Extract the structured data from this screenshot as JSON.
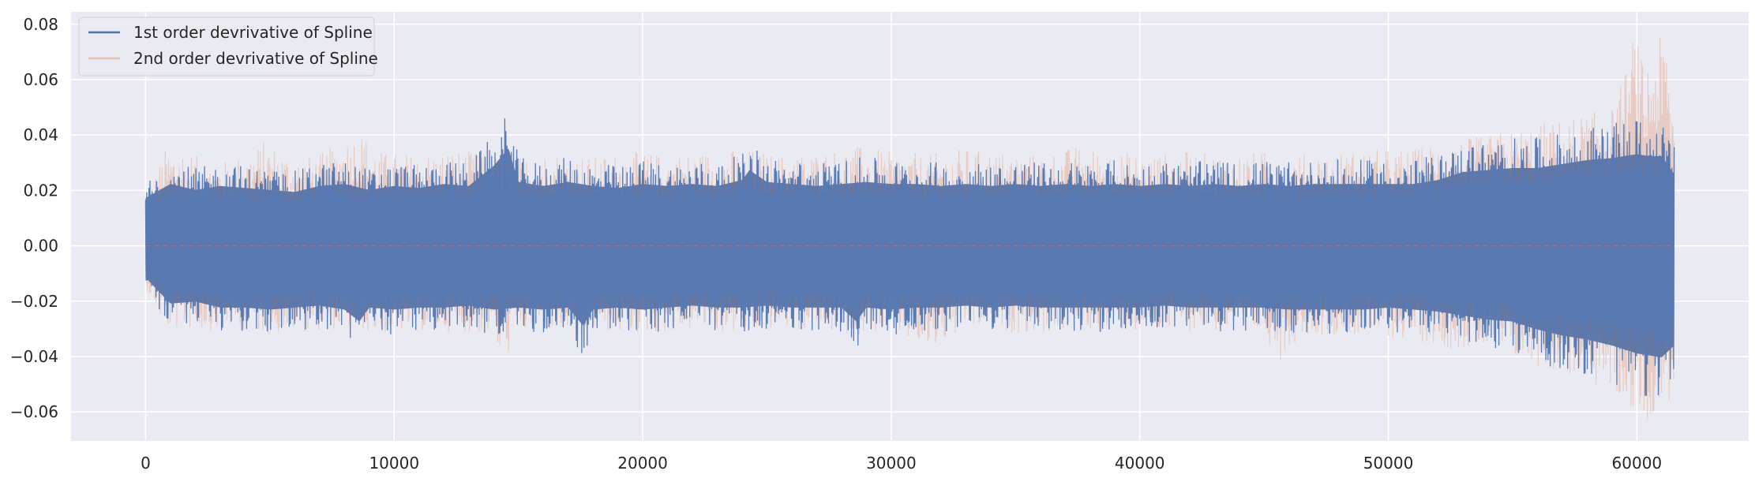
{
  "chart_data": {
    "type": "line",
    "title": "",
    "xlabel": "",
    "ylabel": "",
    "xlim": [
      -3000,
      64500
    ],
    "ylim": [
      -0.0705,
      0.0845
    ],
    "x_ticks": [
      0,
      10000,
      20000,
      30000,
      40000,
      50000,
      60000
    ],
    "x_tick_labels": [
      "0",
      "10000",
      "20000",
      "30000",
      "40000",
      "50000",
      "60000"
    ],
    "y_ticks": [
      -0.06,
      -0.04,
      -0.02,
      0.0,
      0.02,
      0.04,
      0.06,
      0.08
    ],
    "y_tick_labels": [
      "−0.06",
      "−0.04",
      "−0.02",
      "0.00",
      "0.02",
      "0.04",
      "0.06",
      "0.08"
    ],
    "grid": true,
    "legend_position": "top-left",
    "x_range": [
      0,
      61500
    ],
    "zero_line": {
      "y": 0.0,
      "color": "#e05a5a",
      "style": "dashed"
    },
    "series": [
      {
        "name": "1st order devrivative of Spline",
        "color": "#4c72b0",
        "upper_envelope": [
          [
            0,
            0.024
          ],
          [
            1000,
            0.031
          ],
          [
            2000,
            0.028
          ],
          [
            3000,
            0.03
          ],
          [
            4000,
            0.029
          ],
          [
            5000,
            0.028
          ],
          [
            6000,
            0.027
          ],
          [
            7000,
            0.03
          ],
          [
            8000,
            0.031
          ],
          [
            9000,
            0.028
          ],
          [
            10000,
            0.03
          ],
          [
            11000,
            0.029
          ],
          [
            12000,
            0.031
          ],
          [
            13000,
            0.03
          ],
          [
            14000,
            0.04
          ],
          [
            14600,
            0.049
          ],
          [
            15000,
            0.032
          ],
          [
            16000,
            0.03
          ],
          [
            17000,
            0.032
          ],
          [
            18000,
            0.03
          ],
          [
            19000,
            0.029
          ],
          [
            20000,
            0.031
          ],
          [
            21000,
            0.03
          ],
          [
            22000,
            0.031
          ],
          [
            23000,
            0.03
          ],
          [
            24000,
            0.033
          ],
          [
            24300,
            0.038
          ],
          [
            25000,
            0.032
          ],
          [
            26000,
            0.031
          ],
          [
            27000,
            0.03
          ],
          [
            28000,
            0.031
          ],
          [
            29000,
            0.032
          ],
          [
            30000,
            0.031
          ],
          [
            31000,
            0.031
          ],
          [
            32000,
            0.03
          ],
          [
            33000,
            0.031
          ],
          [
            34000,
            0.03
          ],
          [
            35000,
            0.031
          ],
          [
            36000,
            0.03
          ],
          [
            37000,
            0.031
          ],
          [
            38000,
            0.03
          ],
          [
            39000,
            0.031
          ],
          [
            40000,
            0.03
          ],
          [
            41000,
            0.031
          ],
          [
            42000,
            0.03
          ],
          [
            43000,
            0.031
          ],
          [
            44000,
            0.03
          ],
          [
            45000,
            0.031
          ],
          [
            46000,
            0.03
          ],
          [
            47000,
            0.031
          ],
          [
            48000,
            0.031
          ],
          [
            49000,
            0.031
          ],
          [
            50000,
            0.031
          ],
          [
            51000,
            0.031
          ],
          [
            52000,
            0.033
          ],
          [
            53000,
            0.037
          ],
          [
            54000,
            0.038
          ],
          [
            55000,
            0.039
          ],
          [
            56000,
            0.039
          ],
          [
            57000,
            0.041
          ],
          [
            58000,
            0.043
          ],
          [
            59000,
            0.044
          ],
          [
            60000,
            0.046
          ],
          [
            60500,
            0.045
          ],
          [
            61000,
            0.045
          ],
          [
            61500,
            0.036
          ]
        ],
        "lower_envelope": [
          [
            0,
            -0.016
          ],
          [
            1000,
            -0.029
          ],
          [
            2000,
            -0.028
          ],
          [
            3000,
            -0.031
          ],
          [
            4000,
            -0.031
          ],
          [
            5000,
            -0.032
          ],
          [
            6000,
            -0.031
          ],
          [
            7000,
            -0.03
          ],
          [
            8000,
            -0.032
          ],
          [
            8600,
            -0.038
          ],
          [
            9000,
            -0.031
          ],
          [
            10000,
            -0.032
          ],
          [
            11000,
            -0.031
          ],
          [
            12000,
            -0.031
          ],
          [
            13000,
            -0.03
          ],
          [
            14000,
            -0.032
          ],
          [
            15000,
            -0.031
          ],
          [
            16000,
            -0.032
          ],
          [
            17000,
            -0.031
          ],
          [
            17600,
            -0.04
          ],
          [
            18000,
            -0.032
          ],
          [
            19000,
            -0.031
          ],
          [
            20000,
            -0.032
          ],
          [
            21000,
            -0.031
          ],
          [
            22000,
            -0.03
          ],
          [
            23000,
            -0.031
          ],
          [
            24000,
            -0.031
          ],
          [
            25000,
            -0.03
          ],
          [
            26000,
            -0.031
          ],
          [
            27000,
            -0.031
          ],
          [
            28000,
            -0.031
          ],
          [
            28600,
            -0.038
          ],
          [
            29000,
            -0.031
          ],
          [
            30000,
            -0.032
          ],
          [
            31000,
            -0.031
          ],
          [
            32000,
            -0.031
          ],
          [
            33000,
            -0.03
          ],
          [
            34000,
            -0.031
          ],
          [
            35000,
            -0.03
          ],
          [
            36000,
            -0.031
          ],
          [
            37000,
            -0.031
          ],
          [
            38000,
            -0.031
          ],
          [
            39000,
            -0.031
          ],
          [
            40000,
            -0.031
          ],
          [
            41000,
            -0.03
          ],
          [
            42000,
            -0.031
          ],
          [
            43000,
            -0.031
          ],
          [
            44000,
            -0.031
          ],
          [
            45000,
            -0.031
          ],
          [
            46000,
            -0.032
          ],
          [
            47000,
            -0.032
          ],
          [
            48000,
            -0.032
          ],
          [
            49000,
            -0.032
          ],
          [
            50000,
            -0.031
          ],
          [
            51000,
            -0.032
          ],
          [
            52000,
            -0.033
          ],
          [
            53000,
            -0.035
          ],
          [
            54000,
            -0.037
          ],
          [
            55000,
            -0.038
          ],
          [
            56000,
            -0.042
          ],
          [
            57000,
            -0.045
          ],
          [
            58000,
            -0.047
          ],
          [
            59000,
            -0.05
          ],
          [
            60000,
            -0.054
          ],
          [
            60500,
            -0.055
          ],
          [
            61000,
            -0.056
          ],
          [
            61500,
            -0.05
          ]
        ]
      },
      {
        "name": "2nd order devrivative of Spline",
        "color": "#e5c0b2",
        "upper_envelope": [
          [
            0,
            0.018
          ],
          [
            800,
            0.035
          ],
          [
            1500,
            0.036
          ],
          [
            2500,
            0.03
          ],
          [
            3500,
            0.031
          ],
          [
            4800,
            0.038
          ],
          [
            6000,
            0.032
          ],
          [
            7000,
            0.033
          ],
          [
            8600,
            0.042
          ],
          [
            9500,
            0.034
          ],
          [
            11000,
            0.033
          ],
          [
            12500,
            0.035
          ],
          [
            14000,
            0.033
          ],
          [
            15000,
            0.032
          ],
          [
            16500,
            0.034
          ],
          [
            18000,
            0.032
          ],
          [
            19500,
            0.034
          ],
          [
            21000,
            0.033
          ],
          [
            22500,
            0.034
          ],
          [
            24000,
            0.035
          ],
          [
            25500,
            0.033
          ],
          [
            27000,
            0.034
          ],
          [
            28500,
            0.036
          ],
          [
            30000,
            0.034
          ],
          [
            31500,
            0.033
          ],
          [
            33000,
            0.035
          ],
          [
            34500,
            0.034
          ],
          [
            36000,
            0.033
          ],
          [
            37500,
            0.036
          ],
          [
            39000,
            0.034
          ],
          [
            40500,
            0.033
          ],
          [
            42000,
            0.034
          ],
          [
            43500,
            0.033
          ],
          [
            45000,
            0.034
          ],
          [
            46500,
            0.033
          ],
          [
            48000,
            0.034
          ],
          [
            49500,
            0.035
          ],
          [
            51000,
            0.035
          ],
          [
            52500,
            0.038
          ],
          [
            54000,
            0.04
          ],
          [
            55500,
            0.043
          ],
          [
            57000,
            0.046
          ],
          [
            58000,
            0.048
          ],
          [
            59000,
            0.05
          ],
          [
            59600,
            0.065
          ],
          [
            59900,
            0.079
          ],
          [
            60300,
            0.064
          ],
          [
            60600,
            0.075
          ],
          [
            61000,
            0.075
          ],
          [
            61200,
            0.077
          ],
          [
            61500,
            0.05
          ]
        ],
        "lower_envelope": [
          [
            0,
            -0.015
          ],
          [
            800,
            -0.031
          ],
          [
            1500,
            -0.03
          ],
          [
            2500,
            -0.031
          ],
          [
            3500,
            -0.03
          ],
          [
            5000,
            -0.032
          ],
          [
            6500,
            -0.031
          ],
          [
            8000,
            -0.03
          ],
          [
            9500,
            -0.032
          ],
          [
            11000,
            -0.031
          ],
          [
            12500,
            -0.031
          ],
          [
            14000,
            -0.032
          ],
          [
            14300,
            -0.044
          ],
          [
            15000,
            -0.032
          ],
          [
            16500,
            -0.031
          ],
          [
            18000,
            -0.031
          ],
          [
            19500,
            -0.032
          ],
          [
            21000,
            -0.031
          ],
          [
            22500,
            -0.031
          ],
          [
            24000,
            -0.032
          ],
          [
            25500,
            -0.03
          ],
          [
            27000,
            -0.031
          ],
          [
            28500,
            -0.032
          ],
          [
            30000,
            -0.031
          ],
          [
            31500,
            -0.039
          ],
          [
            33000,
            -0.031
          ],
          [
            34500,
            -0.031
          ],
          [
            36000,
            -0.032
          ],
          [
            37500,
            -0.031
          ],
          [
            39000,
            -0.031
          ],
          [
            40500,
            -0.032
          ],
          [
            42000,
            -0.031
          ],
          [
            43500,
            -0.031
          ],
          [
            45000,
            -0.032
          ],
          [
            45600,
            -0.042
          ],
          [
            46500,
            -0.032
          ],
          [
            48000,
            -0.032
          ],
          [
            49500,
            -0.033
          ],
          [
            51000,
            -0.034
          ],
          [
            52500,
            -0.037
          ],
          [
            54000,
            -0.038
          ],
          [
            55500,
            -0.043
          ],
          [
            57000,
            -0.046
          ],
          [
            58000,
            -0.05
          ],
          [
            59000,
            -0.054
          ],
          [
            59600,
            -0.058
          ],
          [
            60000,
            -0.062
          ],
          [
            60300,
            -0.064
          ],
          [
            60800,
            -0.06
          ],
          [
            61200,
            -0.06
          ],
          [
            61500,
            -0.05
          ]
        ]
      }
    ]
  }
}
